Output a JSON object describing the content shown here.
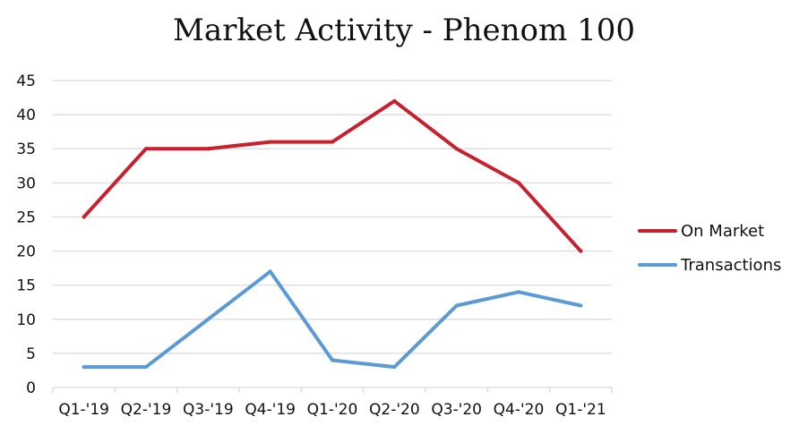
{
  "chart_data": {
    "type": "line",
    "title": "Market Activity - Phenom 100",
    "xlabel": "",
    "ylabel": "",
    "categories": [
      "Q1-'19",
      "Q2-'19",
      "Q3-'19",
      "Q4-'19",
      "Q1-'20",
      "Q2-'20",
      "Q3-'20",
      "Q4-'20",
      "Q1-'21"
    ],
    "ylim": [
      0,
      45
    ],
    "yticks": [
      0,
      5,
      10,
      15,
      20,
      25,
      30,
      35,
      40,
      45
    ],
    "grid": true,
    "legend_position": "right",
    "series": [
      {
        "name": "On Market",
        "color": "#c8202e",
        "values": [
          25,
          35,
          35,
          36,
          36,
          42,
          35,
          30,
          20
        ]
      },
      {
        "name": "Transactions",
        "color": "#5b9bd5",
        "values": [
          3,
          3,
          10,
          17,
          4,
          3,
          12,
          14,
          12
        ]
      }
    ]
  }
}
